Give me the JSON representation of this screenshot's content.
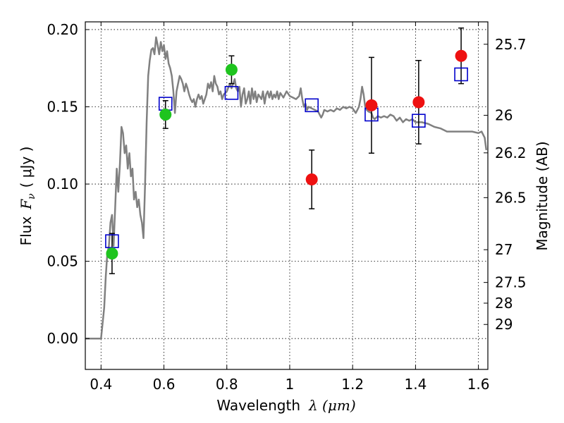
{
  "chart_data": {
    "type": "scatter",
    "xlabel": "Wavelength",
    "xlabel_math": "λ (μm)",
    "ylabel": "Flux",
    "ylabel_math": "F",
    "ylabel_math_sub": "ν",
    "ylabel_unit": "( μJy )",
    "y2label": "Magnitude (AB)",
    "xlim": [
      0.35,
      1.63
    ],
    "ylim": [
      -0.02,
      0.205
    ],
    "grid": true,
    "x_ticks": [
      0.4,
      0.6,
      0.8,
      1.0,
      1.2,
      1.4,
      1.6
    ],
    "x_tick_labels": [
      "0.4",
      "0.6",
      "0.8",
      "1",
      "1.2",
      "1.4",
      "1.6"
    ],
    "y_ticks": [
      0.0,
      0.05,
      0.1,
      0.15,
      0.2
    ],
    "y_tick_labels": [
      "0.00",
      "0.05",
      "0.10",
      "0.15",
      "0.20"
    ],
    "y2_ticks": [
      {
        "label": "25.7",
        "flux": 0.1905
      },
      {
        "label": "26",
        "flux": 0.1445
      },
      {
        "label": "26.2",
        "flux": 0.1202
      },
      {
        "label": "26.5",
        "flux": 0.0912
      },
      {
        "label": "27",
        "flux": 0.0575
      },
      {
        "label": "27.5",
        "flux": 0.0363
      },
      {
        "label": "28",
        "flux": 0.0229
      },
      {
        "label": "29",
        "flux": 0.0091
      }
    ],
    "series": [
      {
        "kind": "line",
        "color": "#808080",
        "points": [
          [
            0.35,
            0.0
          ],
          [
            0.39,
            0.0
          ],
          [
            0.4,
            0.0
          ],
          [
            0.41,
            0.02
          ],
          [
            0.415,
            0.04
          ],
          [
            0.42,
            0.055
          ],
          [
            0.425,
            0.06
          ],
          [
            0.43,
            0.075
          ],
          [
            0.435,
            0.08
          ],
          [
            0.44,
            0.06
          ],
          [
            0.445,
            0.085
          ],
          [
            0.45,
            0.11
          ],
          [
            0.455,
            0.095
          ],
          [
            0.46,
            0.113
          ],
          [
            0.465,
            0.137
          ],
          [
            0.47,
            0.133
          ],
          [
            0.475,
            0.12
          ],
          [
            0.48,
            0.125
          ],
          [
            0.485,
            0.11
          ],
          [
            0.49,
            0.12
          ],
          [
            0.495,
            0.105
          ],
          [
            0.5,
            0.11
          ],
          [
            0.505,
            0.09
          ],
          [
            0.51,
            0.095
          ],
          [
            0.515,
            0.085
          ],
          [
            0.52,
            0.09
          ],
          [
            0.525,
            0.08
          ],
          [
            0.53,
            0.075
          ],
          [
            0.535,
            0.065
          ],
          [
            0.54,
            0.1
          ],
          [
            0.545,
            0.14
          ],
          [
            0.55,
            0.17
          ],
          [
            0.555,
            0.18
          ],
          [
            0.56,
            0.187
          ],
          [
            0.565,
            0.188
          ],
          [
            0.57,
            0.184
          ],
          [
            0.575,
            0.195
          ],
          [
            0.58,
            0.19
          ],
          [
            0.585,
            0.184
          ],
          [
            0.59,
            0.192
          ],
          [
            0.595,
            0.186
          ],
          [
            0.6,
            0.19
          ],
          [
            0.605,
            0.181
          ],
          [
            0.61,
            0.186
          ],
          [
            0.615,
            0.178
          ],
          [
            0.62,
            0.175
          ],
          [
            0.625,
            0.17
          ],
          [
            0.63,
            0.16
          ],
          [
            0.635,
            0.146
          ],
          [
            0.64,
            0.16
          ],
          [
            0.645,
            0.165
          ],
          [
            0.65,
            0.17
          ],
          [
            0.655,
            0.168
          ],
          [
            0.66,
            0.165
          ],
          [
            0.665,
            0.16
          ],
          [
            0.67,
            0.165
          ],
          [
            0.675,
            0.162
          ],
          [
            0.68,
            0.158
          ],
          [
            0.685,
            0.155
          ],
          [
            0.69,
            0.153
          ],
          [
            0.695,
            0.155
          ],
          [
            0.7,
            0.15
          ],
          [
            0.705,
            0.155
          ],
          [
            0.71,
            0.158
          ],
          [
            0.715,
            0.155
          ],
          [
            0.72,
            0.157
          ],
          [
            0.725,
            0.152
          ],
          [
            0.73,
            0.155
          ],
          [
            0.735,
            0.158
          ],
          [
            0.74,
            0.165
          ],
          [
            0.745,
            0.162
          ],
          [
            0.75,
            0.166
          ],
          [
            0.755,
            0.16
          ],
          [
            0.76,
            0.17
          ],
          [
            0.765,
            0.165
          ],
          [
            0.77,
            0.163
          ],
          [
            0.775,
            0.158
          ],
          [
            0.78,
            0.16
          ],
          [
            0.785,
            0.155
          ],
          [
            0.79,
            0.158
          ],
          [
            0.8,
            0.16
          ],
          [
            0.81,
            0.165
          ],
          [
            0.815,
            0.162
          ],
          [
            0.82,
            0.165
          ],
          [
            0.825,
            0.168
          ],
          [
            0.83,
            0.162
          ],
          [
            0.835,
            0.16
          ],
          [
            0.84,
            0.163
          ],
          [
            0.845,
            0.15
          ],
          [
            0.85,
            0.158
          ],
          [
            0.855,
            0.162
          ],
          [
            0.86,
            0.152
          ],
          [
            0.865,
            0.155
          ],
          [
            0.87,
            0.16
          ],
          [
            0.875,
            0.152
          ],
          [
            0.88,
            0.162
          ],
          [
            0.885,
            0.155
          ],
          [
            0.89,
            0.16
          ],
          [
            0.895,
            0.153
          ],
          [
            0.9,
            0.158
          ],
          [
            0.91,
            0.155
          ],
          [
            0.915,
            0.16
          ],
          [
            0.92,
            0.152
          ],
          [
            0.925,
            0.158
          ],
          [
            0.93,
            0.16
          ],
          [
            0.935,
            0.156
          ],
          [
            0.94,
            0.16
          ],
          [
            0.945,
            0.155
          ],
          [
            0.95,
            0.158
          ],
          [
            0.955,
            0.156
          ],
          [
            0.96,
            0.16
          ],
          [
            0.965,
            0.155
          ],
          [
            0.97,
            0.159
          ],
          [
            0.98,
            0.156
          ],
          [
            0.99,
            0.16
          ],
          [
            1.0,
            0.157
          ],
          [
            1.01,
            0.156
          ],
          [
            1.02,
            0.155
          ],
          [
            1.03,
            0.157
          ],
          [
            1.035,
            0.162
          ],
          [
            1.04,
            0.155
          ],
          [
            1.045,
            0.15
          ],
          [
            1.05,
            0.152
          ],
          [
            1.055,
            0.148
          ],
          [
            1.06,
            0.15
          ],
          [
            1.07,
            0.149
          ],
          [
            1.08,
            0.148
          ],
          [
            1.09,
            0.147
          ],
          [
            1.1,
            0.143
          ],
          [
            1.105,
            0.145
          ],
          [
            1.11,
            0.148
          ],
          [
            1.12,
            0.147
          ],
          [
            1.13,
            0.148
          ],
          [
            1.14,
            0.147
          ],
          [
            1.15,
            0.149
          ],
          [
            1.16,
            0.148
          ],
          [
            1.17,
            0.15
          ],
          [
            1.18,
            0.149
          ],
          [
            1.19,
            0.15
          ],
          [
            1.2,
            0.149
          ],
          [
            1.21,
            0.146
          ],
          [
            1.215,
            0.148
          ],
          [
            1.22,
            0.15
          ],
          [
            1.225,
            0.155
          ],
          [
            1.23,
            0.163
          ],
          [
            1.235,
            0.158
          ],
          [
            1.24,
            0.15
          ],
          [
            1.245,
            0.148
          ],
          [
            1.25,
            0.147
          ],
          [
            1.26,
            0.146
          ],
          [
            1.265,
            0.143
          ],
          [
            1.27,
            0.142
          ],
          [
            1.28,
            0.144
          ],
          [
            1.29,
            0.143
          ],
          [
            1.3,
            0.144
          ],
          [
            1.31,
            0.143
          ],
          [
            1.32,
            0.145
          ],
          [
            1.33,
            0.144
          ],
          [
            1.34,
            0.141
          ],
          [
            1.35,
            0.143
          ],
          [
            1.36,
            0.14
          ],
          [
            1.37,
            0.142
          ],
          [
            1.38,
            0.141
          ],
          [
            1.39,
            0.142
          ],
          [
            1.4,
            0.14
          ],
          [
            1.42,
            0.14
          ],
          [
            1.44,
            0.139
          ],
          [
            1.46,
            0.137
          ],
          [
            1.48,
            0.136
          ],
          [
            1.5,
            0.134
          ],
          [
            1.52,
            0.134
          ],
          [
            1.54,
            0.134
          ],
          [
            1.56,
            0.134
          ],
          [
            1.58,
            0.134
          ],
          [
            1.6,
            0.133
          ],
          [
            1.61,
            0.134
          ],
          [
            1.62,
            0.13
          ],
          [
            1.625,
            0.122
          ]
        ]
      },
      {
        "kind": "squares",
        "color": "#0000cc",
        "points": [
          [
            0.435,
            0.063
          ],
          [
            0.605,
            0.152
          ],
          [
            0.815,
            0.159
          ],
          [
            1.07,
            0.151
          ],
          [
            1.26,
            0.145
          ],
          [
            1.41,
            0.141
          ],
          [
            1.545,
            0.171
          ]
        ]
      },
      {
        "kind": "circles",
        "color": "#1fc41f",
        "points": [
          {
            "x": 0.435,
            "y": 0.055,
            "err": 0.013
          },
          {
            "x": 0.605,
            "y": 0.145,
            "err": 0.009
          },
          {
            "x": 0.815,
            "y": 0.174,
            "err": 0.009
          }
        ]
      },
      {
        "kind": "circles",
        "color": "#ee1111",
        "points": [
          {
            "x": 1.07,
            "y": 0.103,
            "err": 0.019
          },
          {
            "x": 1.26,
            "y": 0.151,
            "err": 0.031
          },
          {
            "x": 1.41,
            "y": 0.153,
            "err": 0.027
          },
          {
            "x": 1.545,
            "y": 0.183,
            "err": 0.018
          }
        ]
      }
    ]
  }
}
